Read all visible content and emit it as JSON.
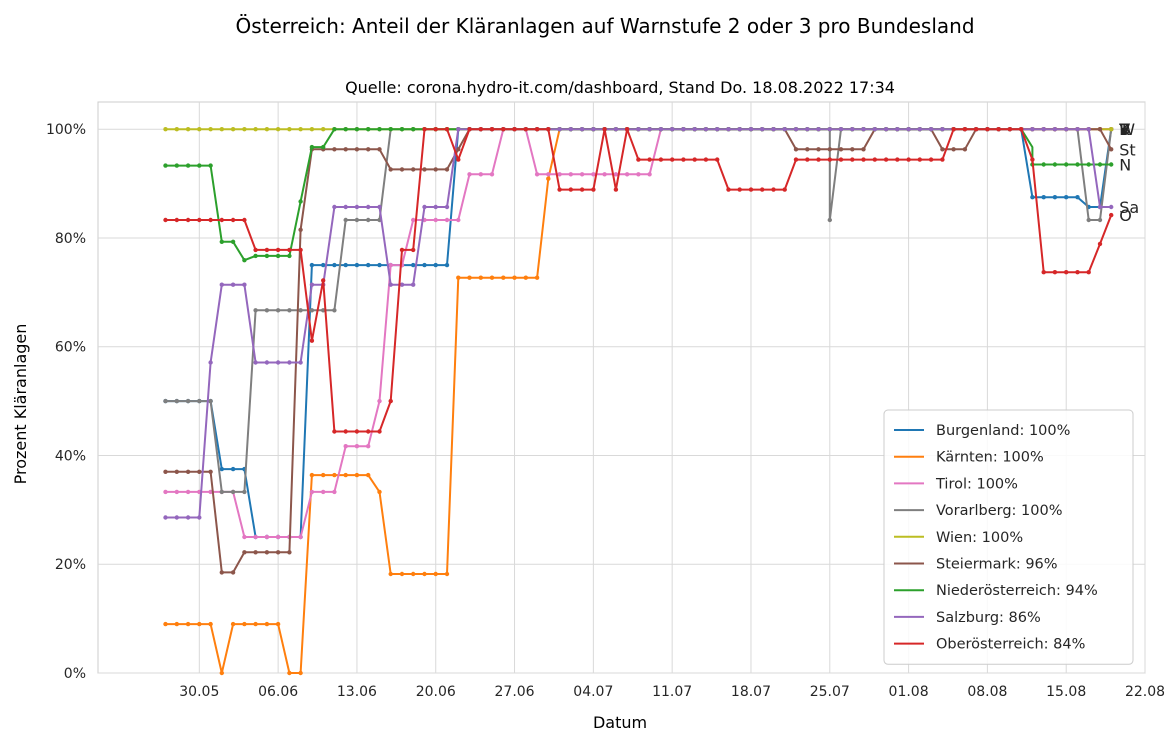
{
  "chart_data": {
    "type": "line",
    "suptitle": "Österreich: Anteil der Kläranlagen auf Warnstufe 2 oder 3 pro Bundesland",
    "title": "Quelle: corona.hydro-it.com/dashboard, Stand Do. 18.08.2022 17:34",
    "xlabel": "Datum",
    "ylabel": "Prozent Kläranlagen",
    "x_range": [
      "2022-05-21",
      "2022-08-22"
    ],
    "ylim": [
      0,
      105
    ],
    "x_ticks": [
      "30.05",
      "06.06",
      "13.06",
      "20.06",
      "27.06",
      "04.07",
      "11.07",
      "18.07",
      "25.07",
      "01.08",
      "08.08",
      "15.08",
      "22.08"
    ],
    "y_ticks": [
      "0%",
      "20%",
      "40%",
      "60%",
      "80%",
      "100%"
    ],
    "grid": true,
    "legend_position": "lower right",
    "series": [
      {
        "name": "Burgenland",
        "legend": "Burgenland: 100%",
        "color": "#1f77b4",
        "end_label": "B",
        "points": [
          [
            "2022-05-27",
            50
          ],
          [
            "2022-05-31",
            50
          ],
          [
            "2022-06-01",
            37.5
          ],
          [
            "2022-06-03",
            37.5
          ],
          [
            "2022-06-04",
            25
          ],
          [
            "2022-06-08",
            25
          ],
          [
            "2022-06-09",
            75
          ],
          [
            "2022-06-21",
            75
          ],
          [
            "2022-06-22",
            100
          ],
          [
            "2022-08-11",
            100
          ],
          [
            "2022-08-12",
            87.5
          ],
          [
            "2022-08-16",
            87.5
          ],
          [
            "2022-08-17",
            85.7
          ],
          [
            "2022-08-18",
            85.7
          ],
          [
            "2022-08-19",
            100
          ]
        ]
      },
      {
        "name": "Kärnten",
        "legend": "Kärnten: 100%",
        "color": "#ff7f0e",
        "end_label": "K",
        "points": [
          [
            "2022-05-27",
            9
          ],
          [
            "2022-05-31",
            9
          ],
          [
            "2022-06-01",
            0
          ],
          [
            "2022-06-02",
            9
          ],
          [
            "2022-06-06",
            9
          ],
          [
            "2022-06-07",
            0
          ],
          [
            "2022-06-08",
            0
          ],
          [
            "2022-06-09",
            36.4
          ],
          [
            "2022-06-14",
            36.4
          ],
          [
            "2022-06-15",
            33.3
          ],
          [
            "2022-06-16",
            18.2
          ],
          [
            "2022-06-21",
            18.2
          ],
          [
            "2022-06-22",
            72.7
          ],
          [
            "2022-06-29",
            72.7
          ],
          [
            "2022-06-30",
            90.9
          ],
          [
            "2022-07-01",
            100
          ],
          [
            "2022-08-19",
            100
          ]
        ]
      },
      {
        "name": "Tirol",
        "legend": "Tirol: 100%",
        "color": "#e377c2",
        "end_label": "T",
        "points": [
          [
            "2022-05-27",
            33.3
          ],
          [
            "2022-06-02",
            33.3
          ],
          [
            "2022-06-03",
            25
          ],
          [
            "2022-06-08",
            25
          ],
          [
            "2022-06-09",
            33.3
          ],
          [
            "2022-06-11",
            33.3
          ],
          [
            "2022-06-12",
            41.7
          ],
          [
            "2022-06-14",
            41.7
          ],
          [
            "2022-06-15",
            50
          ],
          [
            "2022-06-16",
            75
          ],
          [
            "2022-06-17",
            75
          ],
          [
            "2022-06-18",
            83.3
          ],
          [
            "2022-06-22",
            83.3
          ],
          [
            "2022-06-23",
            91.7
          ],
          [
            "2022-06-25",
            91.7
          ],
          [
            "2022-06-26",
            100
          ],
          [
            "2022-06-28",
            100
          ],
          [
            "2022-06-29",
            91.7
          ],
          [
            "2022-07-09",
            91.7
          ],
          [
            "2022-07-10",
            100
          ],
          [
            "2022-08-19",
            100
          ]
        ]
      },
      {
        "name": "Vorarlberg",
        "legend": "Vorarlberg: 100%",
        "color": "#7f7f7f",
        "end_label": "V",
        "points": [
          [
            "2022-05-27",
            50
          ],
          [
            "2022-05-31",
            50
          ],
          [
            "2022-06-01",
            33.3
          ],
          [
            "2022-06-03",
            33.3
          ],
          [
            "2022-06-04",
            66.7
          ],
          [
            "2022-06-11",
            66.7
          ],
          [
            "2022-06-12",
            83.3
          ],
          [
            "2022-06-15",
            83.3
          ],
          [
            "2022-06-16",
            100
          ],
          [
            "2022-07-25",
            100
          ],
          [
            "2022-07-25",
            83.3
          ],
          [
            "2022-07-26",
            100
          ],
          [
            "2022-08-16",
            100
          ],
          [
            "2022-08-17",
            83.3
          ],
          [
            "2022-08-18",
            83.3
          ],
          [
            "2022-08-19",
            100
          ]
        ]
      },
      {
        "name": "Wien",
        "legend": "Wien: 100%",
        "color": "#bcbd22",
        "end_label": "W",
        "points": [
          [
            "2022-05-27",
            100
          ],
          [
            "2022-08-19",
            100
          ]
        ]
      },
      {
        "name": "Steiermark",
        "legend": "Steiermark: 96%",
        "color": "#8c564b",
        "end_label": "St",
        "points": [
          [
            "2022-05-27",
            37
          ],
          [
            "2022-05-31",
            37
          ],
          [
            "2022-06-01",
            18.5
          ],
          [
            "2022-06-02",
            18.5
          ],
          [
            "2022-06-03",
            22.2
          ],
          [
            "2022-06-07",
            22.2
          ],
          [
            "2022-06-08",
            81.5
          ],
          [
            "2022-06-09",
            96.3
          ],
          [
            "2022-06-15",
            96.3
          ],
          [
            "2022-06-16",
            92.6
          ],
          [
            "2022-06-21",
            92.6
          ],
          [
            "2022-06-22",
            96.3
          ],
          [
            "2022-06-23",
            100
          ],
          [
            "2022-07-21",
            100
          ],
          [
            "2022-07-22",
            96.3
          ],
          [
            "2022-07-28",
            96.3
          ],
          [
            "2022-07-29",
            100
          ],
          [
            "2022-08-03",
            100
          ],
          [
            "2022-08-04",
            96.3
          ],
          [
            "2022-08-06",
            96.3
          ],
          [
            "2022-08-07",
            100
          ],
          [
            "2022-08-18",
            100
          ],
          [
            "2022-08-19",
            96.3
          ]
        ]
      },
      {
        "name": "Niederösterreich",
        "legend": "Niederösterreich: 94%",
        "color": "#2ca02c",
        "end_label": "N",
        "points": [
          [
            "2022-05-27",
            93.3
          ],
          [
            "2022-05-31",
            93.3
          ],
          [
            "2022-06-01",
            79.3
          ],
          [
            "2022-06-02",
            79.3
          ],
          [
            "2022-06-03",
            75.9
          ],
          [
            "2022-06-04",
            76.7
          ],
          [
            "2022-06-07",
            76.7
          ],
          [
            "2022-06-08",
            86.7
          ],
          [
            "2022-06-09",
            96.7
          ],
          [
            "2022-06-10",
            96.7
          ],
          [
            "2022-06-11",
            100
          ],
          [
            "2022-08-11",
            100
          ],
          [
            "2022-08-12",
            96.7
          ],
          [
            "2022-08-12",
            93.5
          ],
          [
            "2022-08-18",
            93.5
          ],
          [
            "2022-08-19",
            93.5
          ]
        ]
      },
      {
        "name": "Salzburg",
        "legend": "Salzburg: 86%",
        "color": "#9467bd",
        "end_label": "Sa",
        "points": [
          [
            "2022-05-27",
            28.6
          ],
          [
            "2022-05-30",
            28.6
          ],
          [
            "2022-05-31",
            57.1
          ],
          [
            "2022-06-01",
            71.4
          ],
          [
            "2022-06-03",
            71.4
          ],
          [
            "2022-06-04",
            57.1
          ],
          [
            "2022-06-08",
            57.1
          ],
          [
            "2022-06-09",
            71.4
          ],
          [
            "2022-06-10",
            71.4
          ],
          [
            "2022-06-11",
            85.7
          ],
          [
            "2022-06-15",
            85.7
          ],
          [
            "2022-06-16",
            71.4
          ],
          [
            "2022-06-18",
            71.4
          ],
          [
            "2022-06-19",
            85.7
          ],
          [
            "2022-06-21",
            85.7
          ],
          [
            "2022-06-22",
            100
          ],
          [
            "2022-08-17",
            100
          ],
          [
            "2022-08-18",
            85.7
          ],
          [
            "2022-08-19",
            85.7
          ]
        ]
      },
      {
        "name": "Oberösterreich",
        "legend": "Oberösterreich: 84%",
        "color": "#d62728",
        "end_label": "O",
        "points": [
          [
            "2022-05-27",
            83.3
          ],
          [
            "2022-06-03",
            83.3
          ],
          [
            "2022-06-04",
            77.8
          ],
          [
            "2022-06-08",
            77.8
          ],
          [
            "2022-06-09",
            61.1
          ],
          [
            "2022-06-10",
            72.2
          ],
          [
            "2022-06-11",
            44.4
          ],
          [
            "2022-06-15",
            44.4
          ],
          [
            "2022-06-16",
            50
          ],
          [
            "2022-06-17",
            77.8
          ],
          [
            "2022-06-18",
            77.8
          ],
          [
            "2022-06-19",
            100
          ],
          [
            "2022-06-21",
            100
          ],
          [
            "2022-06-22",
            94.4
          ],
          [
            "2022-06-23",
            100
          ],
          [
            "2022-06-30",
            100
          ],
          [
            "2022-07-01",
            88.9
          ],
          [
            "2022-07-04",
            88.9
          ],
          [
            "2022-07-05",
            100
          ],
          [
            "2022-07-06",
            88.9
          ],
          [
            "2022-07-07",
            100
          ],
          [
            "2022-07-08",
            94.4
          ],
          [
            "2022-07-15",
            94.4
          ],
          [
            "2022-07-16",
            88.9
          ],
          [
            "2022-07-21",
            88.9
          ],
          [
            "2022-07-22",
            94.4
          ],
          [
            "2022-08-04",
            94.4
          ],
          [
            "2022-08-05",
            100
          ],
          [
            "2022-08-11",
            100
          ],
          [
            "2022-08-12",
            94.4
          ],
          [
            "2022-08-13",
            73.7
          ],
          [
            "2022-08-16",
            73.7
          ],
          [
            "2022-08-17",
            73.7
          ],
          [
            "2022-08-18",
            78.9
          ],
          [
            "2022-08-19",
            84.2
          ]
        ]
      }
    ]
  }
}
